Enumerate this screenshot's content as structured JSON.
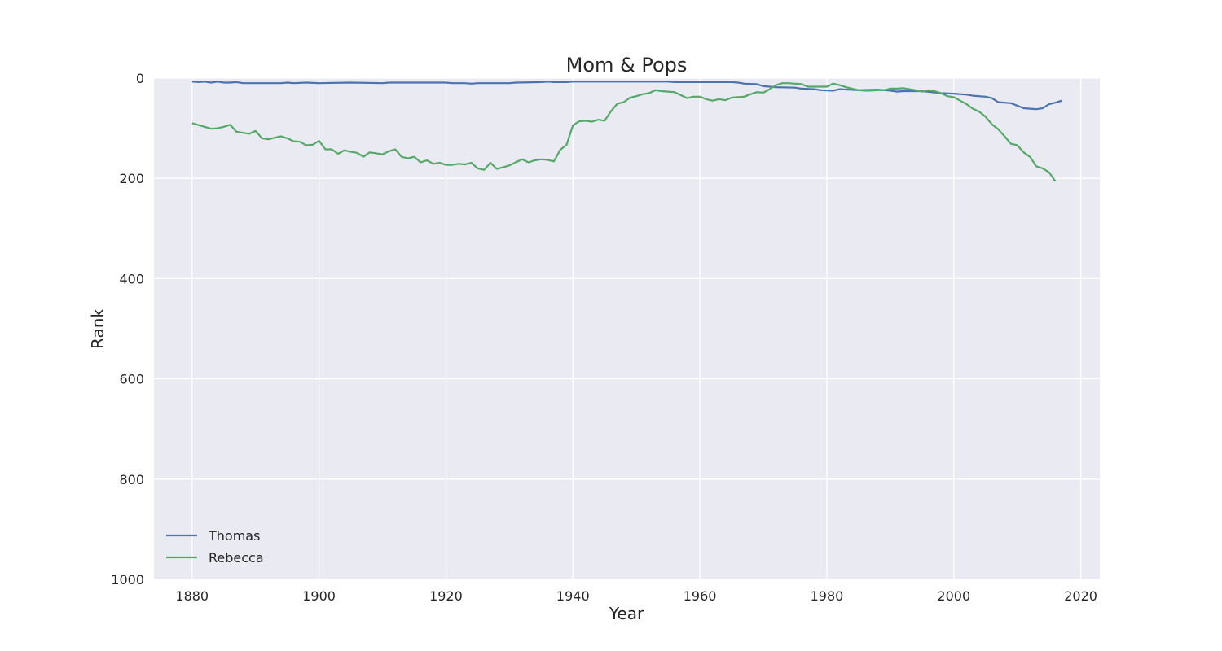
{
  "chart_data": {
    "type": "line",
    "title": "Mom & Pops",
    "xlabel": "Year",
    "ylabel": "Rank",
    "xlim": [
      1874,
      2023
    ],
    "ylim": [
      1000,
      0
    ],
    "y_inverted": true,
    "xticks": [
      1880,
      1900,
      1920,
      1940,
      1960,
      1980,
      2000,
      2020
    ],
    "yticks": [
      0,
      200,
      400,
      600,
      800,
      1000
    ],
    "grid": true,
    "legend_placement": "lower-left",
    "background_color": "#eaeaf2",
    "series": [
      {
        "name": "Thomas",
        "color": "#4c72b0",
        "points": [
          [
            1880,
            7
          ],
          [
            1881,
            8
          ],
          [
            1882,
            7
          ],
          [
            1883,
            9
          ],
          [
            1884,
            7
          ],
          [
            1885,
            9
          ],
          [
            1886,
            9
          ],
          [
            1887,
            8
          ],
          [
            1888,
            10
          ],
          [
            1890,
            10
          ],
          [
            1894,
            10
          ],
          [
            1895,
            9
          ],
          [
            1896,
            10
          ],
          [
            1898,
            9
          ],
          [
            1900,
            10
          ],
          [
            1905,
            9
          ],
          [
            1910,
            10
          ],
          [
            1911,
            9
          ],
          [
            1920,
            9
          ],
          [
            1921,
            10
          ],
          [
            1923,
            10
          ],
          [
            1924,
            11
          ],
          [
            1925,
            10
          ],
          [
            1930,
            10
          ],
          [
            1931,
            9
          ],
          [
            1935,
            8
          ],
          [
            1936,
            7
          ],
          [
            1937,
            8
          ],
          [
            1939,
            8
          ],
          [
            1940,
            7
          ],
          [
            1945,
            7
          ],
          [
            1955,
            7
          ],
          [
            1956,
            8
          ],
          [
            1965,
            8
          ],
          [
            1966,
            9
          ],
          [
            1967,
            11
          ],
          [
            1969,
            12
          ],
          [
            1970,
            16
          ],
          [
            1972,
            18
          ],
          [
            1975,
            19
          ],
          [
            1976,
            21
          ],
          [
            1978,
            22
          ],
          [
            1979,
            24
          ],
          [
            1981,
            25
          ],
          [
            1982,
            22
          ],
          [
            1985,
            24
          ],
          [
            1988,
            23
          ],
          [
            1990,
            25
          ],
          [
            1991,
            27
          ],
          [
            1992,
            26
          ],
          [
            1995,
            26
          ],
          [
            1998,
            30
          ],
          [
            2000,
            31
          ],
          [
            2002,
            33
          ],
          [
            2003,
            35
          ],
          [
            2005,
            37
          ],
          [
            2006,
            40
          ],
          [
            2007,
            48
          ],
          [
            2009,
            50
          ],
          [
            2010,
            55
          ],
          [
            2011,
            60
          ],
          [
            2013,
            62
          ],
          [
            2014,
            60
          ],
          [
            2015,
            52
          ],
          [
            2016,
            49
          ],
          [
            2017,
            45
          ]
        ]
      },
      {
        "name": "Rebecca",
        "color": "#55a868",
        "points": [
          [
            1880,
            90
          ],
          [
            1882,
            97
          ],
          [
            1883,
            101
          ],
          [
            1884,
            100
          ],
          [
            1885,
            97
          ],
          [
            1886,
            93
          ],
          [
            1887,
            107
          ],
          [
            1888,
            109
          ],
          [
            1889,
            111
          ],
          [
            1890,
            105
          ],
          [
            1891,
            120
          ],
          [
            1892,
            122
          ],
          [
            1893,
            119
          ],
          [
            1894,
            116
          ],
          [
            1895,
            120
          ],
          [
            1896,
            126
          ],
          [
            1897,
            127
          ],
          [
            1898,
            134
          ],
          [
            1899,
            133
          ],
          [
            1900,
            125
          ],
          [
            1901,
            142
          ],
          [
            1902,
            142
          ],
          [
            1903,
            151
          ],
          [
            1904,
            144
          ],
          [
            1905,
            147
          ],
          [
            1906,
            149
          ],
          [
            1907,
            157
          ],
          [
            1908,
            148
          ],
          [
            1909,
            150
          ],
          [
            1910,
            152
          ],
          [
            1911,
            146
          ],
          [
            1912,
            142
          ],
          [
            1913,
            157
          ],
          [
            1914,
            160
          ],
          [
            1915,
            157
          ],
          [
            1916,
            168
          ],
          [
            1917,
            164
          ],
          [
            1918,
            171
          ],
          [
            1919,
            169
          ],
          [
            1920,
            173
          ],
          [
            1921,
            173
          ],
          [
            1922,
            171
          ],
          [
            1923,
            172
          ],
          [
            1924,
            169
          ],
          [
            1925,
            180
          ],
          [
            1926,
            183
          ],
          [
            1927,
            169
          ],
          [
            1928,
            181
          ],
          [
            1929,
            178
          ],
          [
            1930,
            174
          ],
          [
            1931,
            168
          ],
          [
            1932,
            162
          ],
          [
            1933,
            168
          ],
          [
            1934,
            164
          ],
          [
            1935,
            162
          ],
          [
            1936,
            163
          ],
          [
            1937,
            166
          ],
          [
            1938,
            143
          ],
          [
            1939,
            133
          ],
          [
            1940,
            94
          ],
          [
            1941,
            86
          ],
          [
            1942,
            85
          ],
          [
            1943,
            87
          ],
          [
            1944,
            83
          ],
          [
            1945,
            85
          ],
          [
            1946,
            66
          ],
          [
            1947,
            51
          ],
          [
            1948,
            48
          ],
          [
            1949,
            39
          ],
          [
            1950,
            36
          ],
          [
            1951,
            32
          ],
          [
            1952,
            30
          ],
          [
            1953,
            24
          ],
          [
            1954,
            26
          ],
          [
            1955,
            27
          ],
          [
            1956,
            28
          ],
          [
            1957,
            34
          ],
          [
            1958,
            40
          ],
          [
            1959,
            37
          ],
          [
            1960,
            37
          ],
          [
            1961,
            42
          ],
          [
            1962,
            45
          ],
          [
            1963,
            42
          ],
          [
            1964,
            44
          ],
          [
            1965,
            39
          ],
          [
            1966,
            38
          ],
          [
            1967,
            37
          ],
          [
            1968,
            32
          ],
          [
            1969,
            28
          ],
          [
            1970,
            29
          ],
          [
            1971,
            22
          ],
          [
            1972,
            14
          ],
          [
            1973,
            10
          ],
          [
            1974,
            10
          ],
          [
            1975,
            11
          ],
          [
            1976,
            12
          ],
          [
            1977,
            17
          ],
          [
            1978,
            17
          ],
          [
            1979,
            17
          ],
          [
            1980,
            17
          ],
          [
            1981,
            11
          ],
          [
            1982,
            14
          ],
          [
            1983,
            18
          ],
          [
            1984,
            21
          ],
          [
            1985,
            24
          ],
          [
            1986,
            25
          ],
          [
            1987,
            25
          ],
          [
            1988,
            24
          ],
          [
            1989,
            24
          ],
          [
            1990,
            21
          ],
          [
            1991,
            21
          ],
          [
            1992,
            20
          ],
          [
            1993,
            22
          ],
          [
            1994,
            24
          ],
          [
            1995,
            27
          ],
          [
            1996,
            24
          ],
          [
            1997,
            26
          ],
          [
            1998,
            30
          ],
          [
            1999,
            36
          ],
          [
            2000,
            38
          ],
          [
            2001,
            45
          ],
          [
            2002,
            52
          ],
          [
            2003,
            61
          ],
          [
            2004,
            67
          ],
          [
            2005,
            77
          ],
          [
            2006,
            92
          ],
          [
            2007,
            102
          ],
          [
            2008,
            116
          ],
          [
            2009,
            131
          ],
          [
            2010,
            134
          ],
          [
            2011,
            148
          ],
          [
            2012,
            157
          ],
          [
            2013,
            176
          ],
          [
            2014,
            180
          ],
          [
            2015,
            188
          ],
          [
            2016,
            206
          ]
        ]
      }
    ]
  }
}
